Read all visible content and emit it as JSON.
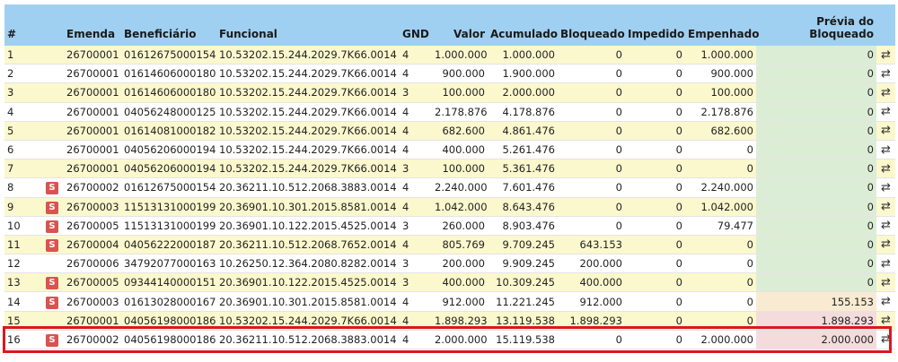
{
  "headers": {
    "num": "#",
    "emenda": "Emenda",
    "beneficiario": "Beneficiário",
    "funcional": "Funcional",
    "gnd": "GND",
    "valor": "Valor",
    "acumulado": "Acumulado",
    "bloqueado": "Bloqueado",
    "impedido": "Impedido",
    "empenhado": "Empenhado",
    "previa_line1": "Prévia do",
    "previa_line2": "Bloqueado"
  },
  "badge_label": "S",
  "swap_glyph": "⇄",
  "colors": {
    "header": "#9fd0f2",
    "odd_row": "#fbf8cd",
    "badge": "#d9534f",
    "highlight": "#d9181e"
  },
  "rows": [
    {
      "num": "1",
      "badge": false,
      "emenda": "26700001",
      "beneficiario": "01612675000154",
      "funcional": "10.53202.15.244.2029.7K66.0014",
      "gnd": "4",
      "valor": "1.000.000",
      "acumulado": "1.000.000",
      "bloqueado": "0",
      "impedido": "0",
      "empenhado": "1.000.000",
      "previa": "0",
      "previa_tone": "green"
    },
    {
      "num": "2",
      "badge": false,
      "emenda": "26700001",
      "beneficiario": "01614606000180",
      "funcional": "10.53202.15.244.2029.7K66.0014",
      "gnd": "4",
      "valor": "900.000",
      "acumulado": "1.900.000",
      "bloqueado": "0",
      "impedido": "0",
      "empenhado": "900.000",
      "previa": "0",
      "previa_tone": "green"
    },
    {
      "num": "3",
      "badge": false,
      "emenda": "26700001",
      "beneficiario": "01614606000180",
      "funcional": "10.53202.15.244.2029.7K66.0014",
      "gnd": "3",
      "valor": "100.000",
      "acumulado": "2.000.000",
      "bloqueado": "0",
      "impedido": "0",
      "empenhado": "100.000",
      "previa": "0",
      "previa_tone": "green"
    },
    {
      "num": "4",
      "badge": false,
      "emenda": "26700001",
      "beneficiario": "04056248000125",
      "funcional": "10.53202.15.244.2029.7K66.0014",
      "gnd": "4",
      "valor": "2.178.876",
      "acumulado": "4.178.876",
      "bloqueado": "0",
      "impedido": "0",
      "empenhado": "2.178.876",
      "previa": "0",
      "previa_tone": "green"
    },
    {
      "num": "5",
      "badge": false,
      "emenda": "26700001",
      "beneficiario": "01614081000182",
      "funcional": "10.53202.15.244.2029.7K66.0014",
      "gnd": "4",
      "valor": "682.600",
      "acumulado": "4.861.476",
      "bloqueado": "0",
      "impedido": "0",
      "empenhado": "682.600",
      "previa": "0",
      "previa_tone": "green"
    },
    {
      "num": "6",
      "badge": false,
      "emenda": "26700001",
      "beneficiario": "04056206000194",
      "funcional": "10.53202.15.244.2029.7K66.0014",
      "gnd": "4",
      "valor": "400.000",
      "acumulado": "5.261.476",
      "bloqueado": "0",
      "impedido": "0",
      "empenhado": "0",
      "previa": "0",
      "previa_tone": "green"
    },
    {
      "num": "7",
      "badge": false,
      "emenda": "26700001",
      "beneficiario": "04056206000194",
      "funcional": "10.53202.15.244.2029.7K66.0014",
      "gnd": "3",
      "valor": "100.000",
      "acumulado": "5.361.476",
      "bloqueado": "0",
      "impedido": "0",
      "empenhado": "0",
      "previa": "0",
      "previa_tone": "green"
    },
    {
      "num": "8",
      "badge": true,
      "emenda": "26700002",
      "beneficiario": "01612675000154",
      "funcional": "20.36211.10.512.2068.3883.0014",
      "gnd": "4",
      "valor": "2.240.000",
      "acumulado": "7.601.476",
      "bloqueado": "0",
      "impedido": "0",
      "empenhado": "2.240.000",
      "previa": "0",
      "previa_tone": "green"
    },
    {
      "num": "9",
      "badge": true,
      "emenda": "26700003",
      "beneficiario": "11513131000199",
      "funcional": "20.36901.10.301.2015.8581.0014",
      "gnd": "4",
      "valor": "1.042.000",
      "acumulado": "8.643.476",
      "bloqueado": "0",
      "impedido": "0",
      "empenhado": "1.042.000",
      "previa": "0",
      "previa_tone": "green"
    },
    {
      "num": "10",
      "badge": true,
      "emenda": "26700005",
      "beneficiario": "11513131000199",
      "funcional": "20.36901.10.122.2015.4525.0014",
      "gnd": "3",
      "valor": "260.000",
      "acumulado": "8.903.476",
      "bloqueado": "0",
      "impedido": "0",
      "empenhado": "79.477",
      "previa": "0",
      "previa_tone": "green"
    },
    {
      "num": "11",
      "badge": true,
      "emenda": "26700004",
      "beneficiario": "04056222000187",
      "funcional": "20.36211.10.512.2068.7652.0014",
      "gnd": "4",
      "valor": "805.769",
      "acumulado": "9.709.245",
      "bloqueado": "643.153",
      "impedido": "0",
      "empenhado": "0",
      "previa": "0",
      "previa_tone": "green"
    },
    {
      "num": "12",
      "badge": false,
      "emenda": "26700006",
      "beneficiario": "34792077000163",
      "funcional": "10.26250.12.364.2080.8282.0014",
      "gnd": "3",
      "valor": "200.000",
      "acumulado": "9.909.245",
      "bloqueado": "200.000",
      "impedido": "0",
      "empenhado": "0",
      "previa": "0",
      "previa_tone": "green"
    },
    {
      "num": "13",
      "badge": true,
      "emenda": "26700005",
      "beneficiario": "09344140000151",
      "funcional": "20.36901.10.122.2015.4525.0014",
      "gnd": "3",
      "valor": "400.000",
      "acumulado": "10.309.245",
      "bloqueado": "400.000",
      "impedido": "0",
      "empenhado": "0",
      "previa": "0",
      "previa_tone": "green"
    },
    {
      "num": "14",
      "badge": true,
      "emenda": "26700003",
      "beneficiario": "01613028000167",
      "funcional": "20.36901.10.301.2015.8581.0014",
      "gnd": "4",
      "valor": "912.000",
      "acumulado": "11.221.245",
      "bloqueado": "912.000",
      "impedido": "0",
      "empenhado": "0",
      "previa": "155.153",
      "previa_tone": "amber"
    },
    {
      "num": "15",
      "badge": false,
      "emenda": "26700001",
      "beneficiario": "04056198000186",
      "funcional": "10.53202.15.244.2029.7K66.0014",
      "gnd": "4",
      "valor": "1.898.293",
      "acumulado": "13.119.538",
      "bloqueado": "1.898.293",
      "impedido": "0",
      "empenhado": "0",
      "previa": "1.898.293",
      "previa_tone": "red"
    },
    {
      "num": "16",
      "badge": true,
      "emenda": "26700002",
      "beneficiario": "04056198000186",
      "funcional": "20.36211.10.512.2068.3883.0014",
      "gnd": "4",
      "valor": "2.000.000",
      "acumulado": "15.119.538",
      "bloqueado": "0",
      "impedido": "0",
      "empenhado": "2.000.000",
      "previa": "2.000.000",
      "previa_tone": "red"
    }
  ]
}
